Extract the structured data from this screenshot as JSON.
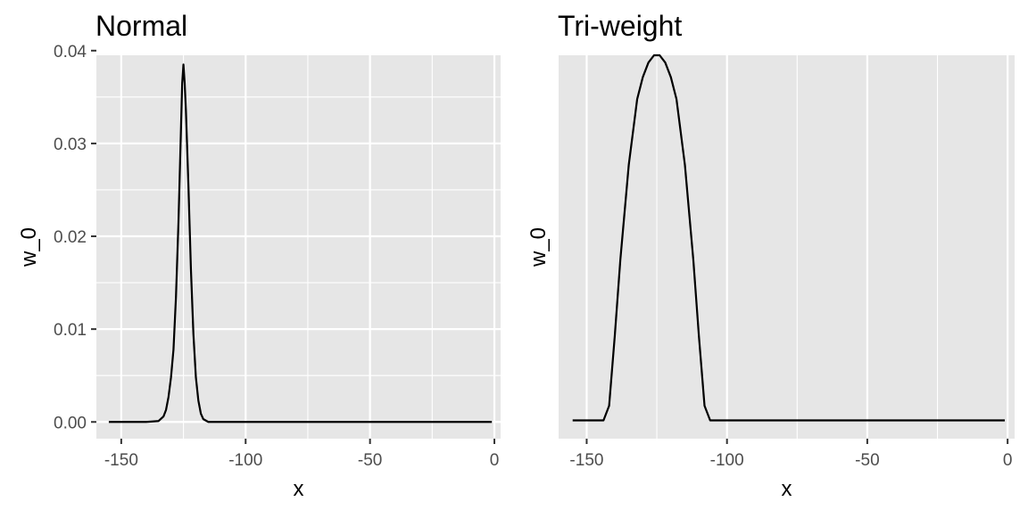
{
  "chart_data": [
    {
      "type": "line",
      "title": "Normal",
      "xlabel": "x",
      "ylabel": "w_0",
      "xlim": [
        -160,
        2.5
      ],
      "ylim": [
        -0.0018,
        0.0395
      ],
      "x_ticks": [
        -150,
        -100,
        -50,
        0
      ],
      "x_tick_labels": [
        "-150",
        "-100",
        "-50",
        "0"
      ],
      "y_ticks": [
        0.0,
        0.01,
        0.02,
        0.03,
        0.04
      ],
      "y_tick_labels": [
        "0.00",
        "0.01",
        "0.02",
        "0.03",
        "0.04"
      ],
      "show_y_tick_labels": true,
      "grid": true,
      "series": [
        {
          "x": [
            -155,
            -140,
            -135,
            -133,
            -132,
            -131,
            -130,
            -129,
            -128,
            -127,
            -126,
            -125.5,
            -125,
            -124.5,
            -124,
            -123,
            -122,
            -121,
            -120,
            -119,
            -118,
            -117,
            -115,
            -110,
            -100,
            -50,
            -1
          ],
          "y": [
            0.0,
            0.0,
            0.0001,
            0.0006,
            0.0013,
            0.0027,
            0.0048,
            0.0078,
            0.0135,
            0.0215,
            0.0315,
            0.0365,
            0.0385,
            0.0365,
            0.0335,
            0.0255,
            0.0165,
            0.0095,
            0.0048,
            0.0023,
            0.0009,
            0.0003,
            0.0,
            0.0,
            0.0,
            0.0,
            0.0
          ]
        }
      ]
    },
    {
      "type": "line",
      "title": "Tri-weight",
      "xlabel": "x",
      "ylabel": "w_0",
      "xlim": [
        -160,
        2.5
      ],
      "ylim": [
        -5e-05,
        0.001
      ],
      "x_ticks": [
        -150,
        -100,
        -50,
        0
      ],
      "x_tick_labels": [
        "-150",
        "-100",
        "-50",
        "0"
      ],
      "y_ticks": [],
      "y_tick_labels": [],
      "show_y_tick_labels": false,
      "grid": true,
      "series": [
        {
          "x": [
            -155,
            -145,
            -144,
            -142,
            -140,
            -138,
            -135,
            -132,
            -130,
            -128,
            -126,
            -125,
            -124,
            -122,
            -120,
            -118,
            -115,
            -112,
            -110,
            -108,
            -106,
            -105,
            -100,
            -50,
            -1
          ],
          "y": [
            0.0,
            0.0,
            0.0,
            4e-05,
            0.00023,
            0.00044,
            0.0007,
            0.00088,
            0.00094,
            0.00098,
            0.001,
            0.001,
            0.001,
            0.00098,
            0.00094,
            0.00088,
            0.0007,
            0.00044,
            0.00023,
            4e-05,
            0.0,
            0.0,
            0.0,
            0.0,
            0.0
          ]
        }
      ]
    }
  ]
}
